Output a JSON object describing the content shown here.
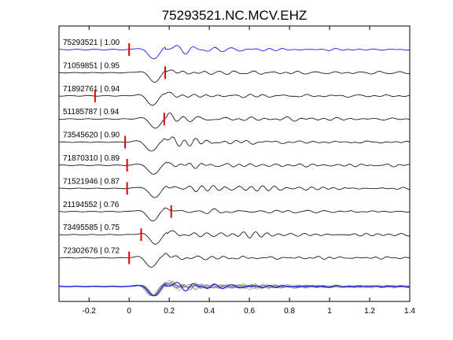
{
  "chart_data": {
    "type": "line",
    "title": "75293521.NC.MCV.EHZ",
    "xlabel": "",
    "ylabel": "",
    "xlim": [
      -0.35,
      1.4
    ],
    "xticks": [
      -0.2,
      0,
      0.2,
      0.4,
      0.6,
      0.8,
      1,
      1.2,
      1.4
    ],
    "xtick_labels": [
      "-0.2",
      "0",
      "0.2",
      "0.4",
      "0.6",
      "0.8",
      "1",
      "1.2",
      "1.4"
    ],
    "reference_color": "#0000ff",
    "trace_color": "#000000",
    "pick_color": "#dd0000",
    "stack_color": "#888888",
    "traces": [
      {
        "label": "75293521 | 1.00",
        "pick_time": 0.0,
        "shift": 0.0,
        "reference": true
      },
      {
        "label": "71059851 | 0.95",
        "pick_time": 0.18,
        "shift": 0.005
      },
      {
        "label": "71892761 | 0.94",
        "pick_time": -0.17,
        "shift": -0.005
      },
      {
        "label": "51185787 | 0.94",
        "pick_time": 0.175,
        "shift": 0.01
      },
      {
        "label": "73545620 | 0.90",
        "pick_time": -0.02,
        "shift": -0.01
      },
      {
        "label": "71870310 | 0.89",
        "pick_time": -0.01,
        "shift": 0.0
      },
      {
        "label": "71521946 | 0.87",
        "pick_time": -0.01,
        "shift": 0.005
      },
      {
        "label": "21194552 | 0.76",
        "pick_time": 0.21,
        "shift": -0.005
      },
      {
        "label": "73495585 | 0.75",
        "pick_time": 0.06,
        "shift": 0.01
      },
      {
        "label": "72302676 | 0.72",
        "pick_time": 0.0,
        "shift": -0.01
      }
    ]
  }
}
